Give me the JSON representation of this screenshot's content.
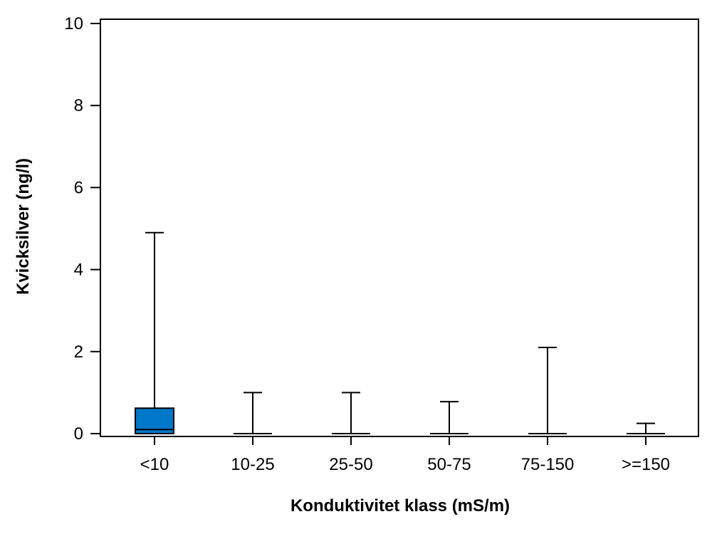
{
  "chart_data": {
    "type": "boxplot",
    "xlabel": "Konduktivitet klass (mS/m)",
    "ylabel": "Kvicksilver (ng/l)",
    "ylim": [
      0,
      10
    ],
    "yticks": [
      0,
      2,
      4,
      6,
      8,
      10
    ],
    "grid": false,
    "box_color": "#0077C8",
    "categories": [
      "<10",
      "10-25",
      "25-50",
      "50-75",
      "75-150",
      ">=150"
    ],
    "boxes": [
      {
        "category": "<10",
        "min": 0.0,
        "q1": 0.0,
        "median": 0.1,
        "q3": 0.62,
        "max": 4.9
      },
      {
        "category": "10-25",
        "min": 0.0,
        "q1": 0.0,
        "median": 0.0,
        "q3": 0.0,
        "max": 1.0
      },
      {
        "category": "25-50",
        "min": 0.0,
        "q1": 0.0,
        "median": 0.0,
        "q3": 0.0,
        "max": 1.0
      },
      {
        "category": "50-75",
        "min": 0.0,
        "q1": 0.0,
        "median": 0.0,
        "q3": 0.0,
        "max": 0.78
      },
      {
        "category": "75-150",
        "min": 0.0,
        "q1": 0.0,
        "median": 0.0,
        "q3": 0.0,
        "max": 2.1
      },
      {
        "category": ">=150",
        "min": 0.0,
        "q1": 0.0,
        "median": 0.0,
        "q3": 0.0,
        "max": 0.25
      }
    ]
  }
}
